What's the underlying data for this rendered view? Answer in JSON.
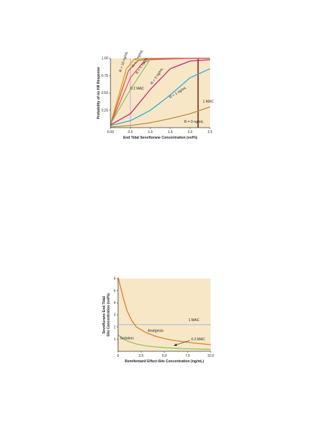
{
  "chart_data": [
    {
      "type": "line",
      "title": "",
      "xlabel": "End Tidal Sevoflurane Concentration (vol%)",
      "ylabel": "Probability of no HR Response",
      "xlim": [
        0,
        2.5
      ],
      "ylim": [
        0,
        1.0
      ],
      "x_ticks": [
        "0.00",
        "0.5",
        "1.0",
        "1.5",
        "2.0",
        "2.5"
      ],
      "x_tick_values": [
        0,
        0.5,
        1.0,
        1.5,
        2.0,
        2.5
      ],
      "y_ticks": [
        "0.25",
        "0.50",
        "0.75",
        "1.00"
      ],
      "y_tick_values": [
        0.25,
        0.5,
        0.75,
        1.0
      ],
      "background": "#f8e7c6",
      "series": [
        {
          "name": "R = 10 ng/mL",
          "color": "#c9a227",
          "x": [
            0,
            0.4,
            0.6,
            1.0,
            1.5,
            2.0,
            2.5
          ],
          "y": [
            0.05,
            0.85,
            0.99,
            1.0,
            1.0,
            1.0,
            1.0
          ],
          "label_pos": [
            0.27,
            0.8
          ],
          "label_angle": -72
        },
        {
          "name": "R = 7 ng/mL",
          "color": "#d65a2a",
          "x": [
            0,
            0.45,
            0.7,
            1.0,
            1.5,
            2.0,
            2.5
          ],
          "y": [
            0.04,
            0.82,
            0.97,
            0.99,
            1.0,
            1.0,
            1.0
          ],
          "label_pos": [
            0.58,
            0.87
          ],
          "label_angle": -60
        },
        {
          "name": "R = 5 ng/mL",
          "color": "#e0577a",
          "x": [
            0,
            0.5,
            0.8,
            1.0,
            1.5,
            2.0,
            2.5
          ],
          "y": [
            0.04,
            0.72,
            0.93,
            0.98,
            0.99,
            1.0,
            1.0
          ],
          "label_pos": [
            0.68,
            0.77
          ],
          "label_angle": -58
        },
        {
          "name": "0.2 MAC",
          "color": "#8fbf6a",
          "x": [
            0,
            0.5,
            0.9,
            1.0
          ],
          "y": [
            0.05,
            0.55,
            0.9,
            0.99
          ],
          "label_pos": [
            0.5,
            0.55
          ],
          "label_angle": 0
        },
        {
          "name": "R = 3 ng/mL",
          "color": "#c0257a",
          "x": [
            0,
            0.5,
            1.0,
            1.5,
            2.0,
            2.25,
            2.5
          ],
          "y": [
            0.04,
            0.2,
            0.55,
            0.85,
            0.96,
            0.97,
            0.98
          ],
          "label_pos": [
            1.05,
            0.62
          ],
          "label_angle": -55
        },
        {
          "name": "R = 1 ng/mL",
          "color": "#2ca7db",
          "x": [
            0,
            0.5,
            1.0,
            1.5,
            2.0,
            2.5
          ],
          "y": [
            0.03,
            0.1,
            0.25,
            0.47,
            0.72,
            0.85
          ],
          "label_pos": [
            1.5,
            0.42
          ],
          "label_angle": -32
        },
        {
          "name": "R = 0 ng/mL",
          "color": "#b58a3a",
          "x": [
            0,
            0.5,
            1.0,
            1.5,
            2.0,
            2.5
          ],
          "y": [
            0.01,
            0.03,
            0.07,
            0.13,
            0.2,
            0.3
          ],
          "label_pos": [
            1.85,
            0.07
          ],
          "label_angle": 0
        }
      ],
      "reference_lines": [
        {
          "x": 0.5,
          "color": "#c9a2dc"
        },
        {
          "x": 2.2,
          "color": "#6b1f12",
          "label": "1 MAC",
          "label_pos": [
            2.32,
            0.36
          ]
        }
      ]
    },
    {
      "type": "line",
      "title": "",
      "xlabel": "Remifentanil Effect-Site Concentration (ng/mL)",
      "ylabel": "Sevoflurane End-Tidal Site Concentration (vol%)",
      "ylabel_lines": [
        "Sevoflurane End-Tidal",
        "Site Concentration (vol%)"
      ],
      "xlim": [
        0,
        10.0
      ],
      "ylim": [
        0,
        6
      ],
      "x_ticks": [
        "0",
        "2.5",
        "5.0",
        "7.5",
        "10.0"
      ],
      "x_tick_values": [
        0,
        2.5,
        5.0,
        7.5,
        10.0
      ],
      "y_ticks": [
        "1",
        "2",
        "3",
        "4",
        "5",
        "6"
      ],
      "y_tick_values": [
        1,
        2,
        3,
        4,
        5,
        6
      ],
      "background": "#f8e7c6",
      "series": [
        {
          "name": "Analgesia",
          "color": "#e07a2a",
          "x": [
            0,
            0.3,
            0.6,
            1.0,
            1.5,
            2.0,
            3.0,
            4.0,
            5.0,
            6.0,
            7.0,
            8.0,
            9.0,
            10.0
          ],
          "y": [
            6.1,
            5.2,
            4.3,
            3.3,
            2.5,
            2.0,
            1.55,
            1.25,
            1.05,
            0.9,
            0.8,
            0.7,
            0.62,
            0.55
          ],
          "label_pos": [
            3.2,
            1.6
          ]
        },
        {
          "name": "Sedation",
          "color": "#8fbf6a",
          "x": [
            0,
            0.5,
            1.0,
            2.0,
            3.0,
            4.0,
            5.0,
            6.0,
            7.0,
            8.0,
            9.0,
            10.0
          ],
          "y": [
            1.35,
            1.05,
            0.85,
            0.6,
            0.45,
            0.37,
            0.3,
            0.26,
            0.22,
            0.2,
            0.18,
            0.16
          ],
          "label_pos": [
            0.2,
            1.0
          ]
        }
      ],
      "reference_lines": [
        {
          "y": 2.2,
          "color": "#a9c4dc",
          "label": "1 MAC",
          "label_pos": [
            7.6,
            2.5
          ]
        }
      ],
      "annotations": [
        {
          "text": "0.2 MAC",
          "pos": [
            7.9,
            0.95
          ],
          "arrow_to": [
            6.0,
            0.45
          ]
        }
      ]
    }
  ]
}
